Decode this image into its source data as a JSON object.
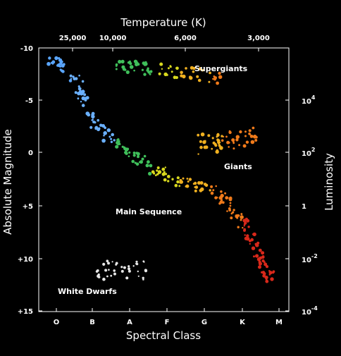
{
  "top_axis": {
    "title": "Temperature (K)",
    "ticks": [
      "25,000",
      "10,000",
      "6,000",
      "3,000"
    ]
  },
  "bottom_axis": {
    "title": "Spectral Class",
    "ticks": [
      "O",
      "B",
      "A",
      "F",
      "G",
      "K",
      "M"
    ]
  },
  "left_axis": {
    "title": "Absolute Magnitude",
    "ticks": [
      "-10",
      "-5",
      "0",
      "+5",
      "+10",
      "+15"
    ]
  },
  "right_axis": {
    "title": "Luminosity",
    "ticks": [
      {
        "base": "10",
        "exp": "4"
      },
      {
        "base": "10",
        "exp": "2"
      },
      {
        "base": "1",
        "exp": ""
      },
      {
        "base": "10",
        "exp": "-2"
      },
      {
        "base": "10",
        "exp": "-4"
      }
    ]
  },
  "regions": {
    "supergiants": "Supergiants",
    "giants": "Giants",
    "main_sequence": "Main Sequence",
    "white_dwarfs": "White Dwarfs"
  },
  "colors": {
    "background": "#000000",
    "frame": "#ffffff",
    "o_star": "#5aa6ff",
    "b_star": "#6ab0ff",
    "a_star": "#3fbf5a",
    "f_star": "#d8d81e",
    "g_star": "#f0b020",
    "k_star": "#f07a1a",
    "m_star": "#d8281a",
    "white_dwarf": "#e6e6e6"
  }
}
